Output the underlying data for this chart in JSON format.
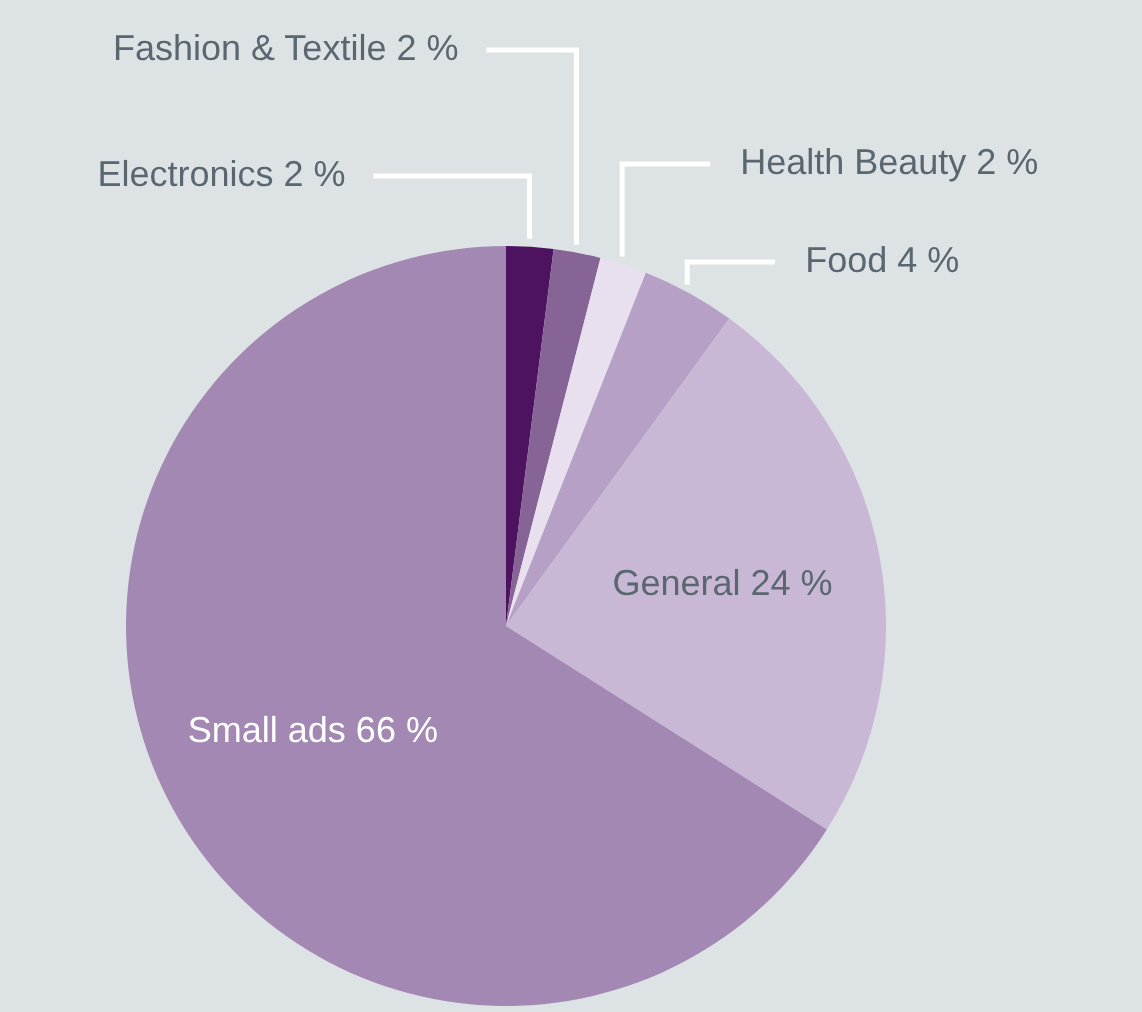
{
  "chart_data": {
    "type": "pie",
    "categories": [
      "Electronics",
      "Fashion & Textile",
      "Health Beauty",
      "Food",
      "General",
      "Small ads"
    ],
    "values": [
      2,
      2,
      2,
      4,
      24,
      66
    ],
    "value_labels": [
      "2 %",
      "2 %",
      "2 %",
      "4 %",
      "24 %",
      "66 %"
    ],
    "colors": [
      "#4e1360",
      "#876496",
      "#e8e0ee",
      "#b6a0c6",
      "#c8b8d5",
      "#a388b3"
    ]
  }
}
